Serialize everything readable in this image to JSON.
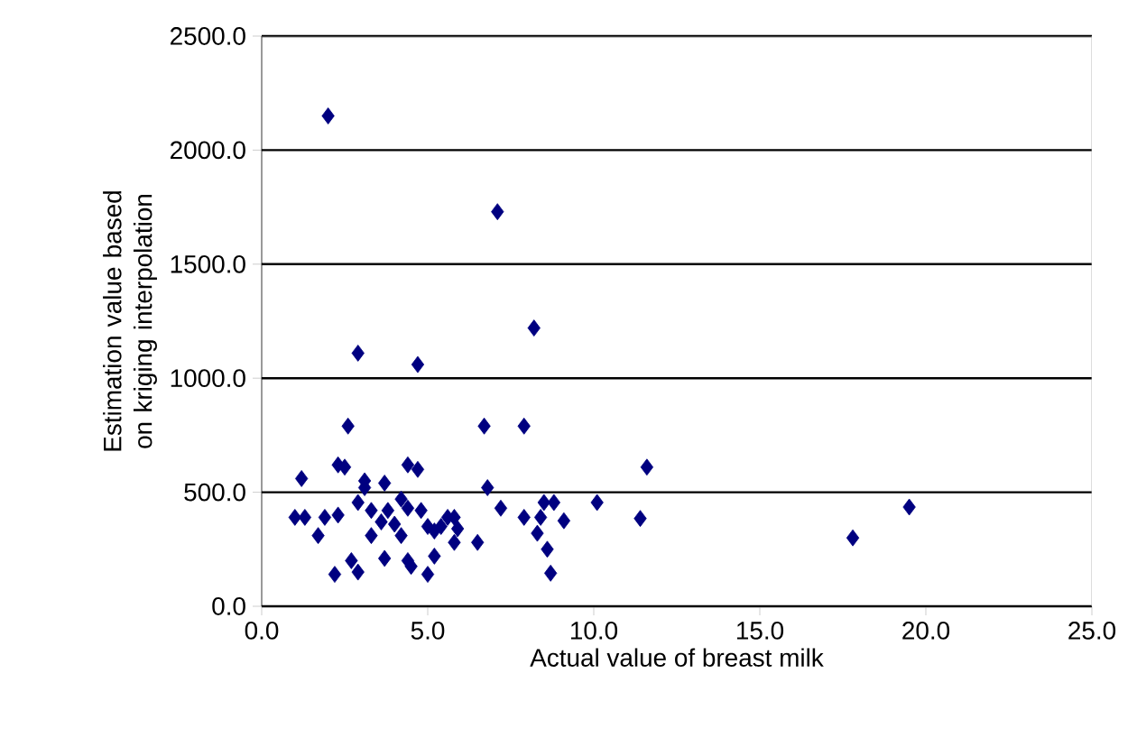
{
  "chart_data": {
    "type": "scatter",
    "xlabel": "Actual value of breast milk",
    "ylabel": "Estimation value based on kriging interpolation",
    "x": [
      2.0,
      7.1,
      2.9,
      4.7,
      8.2,
      2.6,
      6.7,
      7.9,
      1.2,
      2.3,
      2.5,
      3.1,
      3.7,
      4.4,
      4.7,
      6.8,
      7.2,
      11.6,
      10.1,
      11.4,
      8.5,
      8.8,
      7.9,
      8.4,
      9.1,
      8.3,
      8.6,
      8.7,
      1.0,
      1.3,
      1.7,
      1.9,
      2.3,
      2.9,
      2.2,
      2.7,
      2.9,
      3.1,
      3.3,
      3.6,
      3.3,
      3.7,
      4.0,
      4.2,
      4.4,
      4.5,
      5.0,
      5.2,
      4.8,
      5.0,
      5.2,
      5.4,
      5.6,
      5.8,
      5.9,
      5.8,
      6.5,
      4.2,
      4.4,
      3.8,
      17.8,
      19.5
    ],
    "values": [
      2150,
      1730,
      1110,
      1060,
      1220,
      790,
      790,
      790,
      560,
      620,
      610,
      550,
      540,
      620,
      600,
      520,
      430,
      610,
      455,
      385,
      455,
      455,
      390,
      390,
      375,
      320,
      250,
      145,
      390,
      390,
      310,
      390,
      400,
      455,
      140,
      200,
      150,
      520,
      420,
      370,
      310,
      210,
      360,
      310,
      200,
      175,
      140,
      220,
      420,
      350,
      330,
      350,
      390,
      390,
      340,
      280,
      280,
      470,
      430,
      420,
      300,
      435
    ],
    "color": "#000080",
    "marker": "diamond",
    "xlim": [
      0,
      25
    ],
    "xticks": [
      {
        "value": 0,
        "label": "0.0"
      },
      {
        "value": 5,
        "label": "5.0"
      },
      {
        "value": 10,
        "label": "10.0"
      },
      {
        "value": 15,
        "label": "15.0"
      },
      {
        "value": 20,
        "label": "20.0"
      },
      {
        "value": 25,
        "label": "25.0"
      }
    ],
    "ylim": [
      0,
      2500
    ],
    "yticks": [
      {
        "value": 0,
        "label": "0.0"
      },
      {
        "value": 500,
        "label": "500.0"
      },
      {
        "value": 1000,
        "label": "1000.0"
      },
      {
        "value": 1500,
        "label": "1500.0"
      },
      {
        "value": 2000,
        "label": "2000.0"
      },
      {
        "value": 2500,
        "label": "2500.0"
      }
    ],
    "grid": "y"
  }
}
